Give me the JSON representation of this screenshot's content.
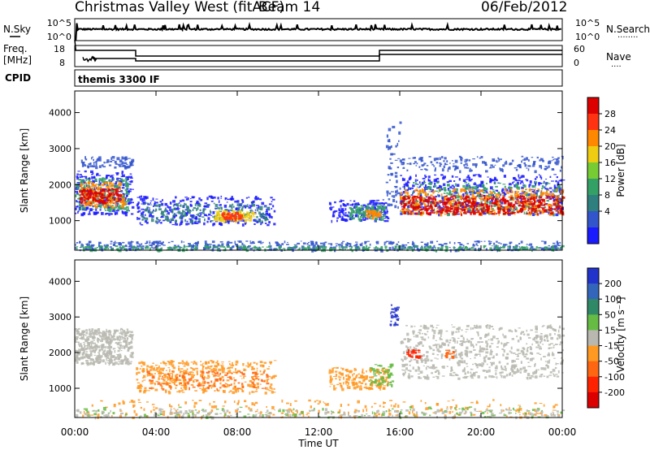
{
  "header": {
    "station": "Christmas Valley West (fitACF)",
    "beam": "Beam 14",
    "date": "06/Feb/2012"
  },
  "top_panels": {
    "nsky_label": "N.Sky",
    "nsearch_label": "N.Search",
    "nsearch_dots": "........",
    "freq_label": "Freq.",
    "freq_unit": "[MHz]",
    "nave_label": "Nave",
    "nave_dots": "....",
    "cpid_label": "CPID",
    "cpid_text": "themis 3300 IF",
    "noise_ticks_left": [
      "10^5",
      "10^0"
    ],
    "noise_ticks_right": [
      "10^5",
      "10^0"
    ],
    "freq_ticks_left": [
      "18",
      "8"
    ],
    "nave_ticks_right": [
      "60",
      "0"
    ]
  },
  "chart_data": [
    {
      "type": "heatmap",
      "title": "",
      "xlabel": "",
      "ylabel": "Slant Range [km]",
      "xlim": [
        0,
        24
      ],
      "ylim": [
        180,
        4600
      ],
      "yticks": [
        "1000",
        "2000",
        "3000",
        "4000"
      ],
      "colorbar_label": "Power [dB]",
      "colorbar_ticks": [
        "4",
        "8",
        "12",
        "16",
        "20",
        "24",
        "28"
      ],
      "colorbar_colors": [
        "#1a1aff",
        "#3355cc",
        "#2f7f7f",
        "#33a066",
        "#77cc33",
        "#eecc11",
        "#ff8800",
        "#ff3311",
        "#dd0000"
      ]
    },
    {
      "type": "heatmap",
      "title": "",
      "xlabel": "Time UT",
      "ylabel": "Slant Range [km]",
      "xlim": [
        0,
        24
      ],
      "ylim": [
        180,
        4600
      ],
      "xticks": [
        "00:00",
        "04:00",
        "08:00",
        "12:00",
        "16:00",
        "20:00",
        "00:00"
      ],
      "yticks": [
        "1000",
        "2000",
        "3000",
        "4000"
      ],
      "colorbar_label": "Velocity [m s⁻¹]",
      "colorbar_ticks": [
        "200",
        "100",
        "50",
        "15",
        "-15",
        "-50",
        "-100",
        "-200"
      ],
      "colorbar_colors": [
        "#2233cc",
        "#3366bb",
        "#2f8866",
        "#66bb44",
        "#b8b8b0",
        "#ff9922",
        "#ff6611",
        "#ff2200",
        "#dd0000"
      ]
    }
  ]
}
